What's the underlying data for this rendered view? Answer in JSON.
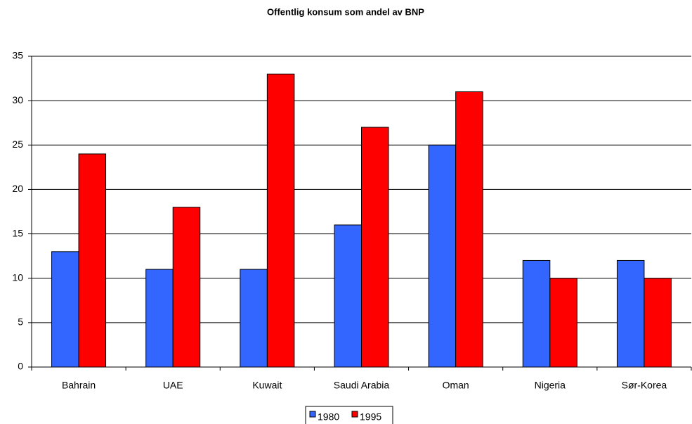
{
  "chart_data": {
    "type": "bar",
    "title": "Offentlig konsum som andel av BNP",
    "categories": [
      "Bahrain",
      "UAE",
      "Kuwait",
      "Saudi Arabia",
      "Oman",
      "Nigeria",
      "Sør-Korea"
    ],
    "series": [
      {
        "name": "1980",
        "color": "#3366ff",
        "values": [
          13,
          11,
          11,
          16,
          25,
          12,
          12
        ]
      },
      {
        "name": "1995",
        "color": "#ff0000",
        "values": [
          24,
          18,
          33,
          27,
          31,
          10,
          10
        ]
      }
    ],
    "ylim": [
      0,
      35
    ],
    "yticks": [
      0,
      5,
      10,
      15,
      20,
      25,
      30,
      35
    ],
    "grid": true,
    "legend": "bottom"
  }
}
